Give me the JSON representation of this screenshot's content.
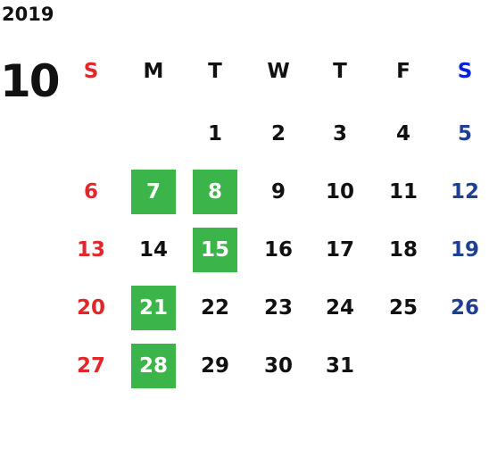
{
  "year": "2019",
  "month": "10",
  "weekdays": [
    "S",
    "M",
    "T",
    "W",
    "T",
    "F",
    "S"
  ],
  "weeks": [
    [
      null,
      null,
      1,
      2,
      3,
      4,
      5
    ],
    [
      6,
      7,
      8,
      9,
      10,
      11,
      12
    ],
    [
      13,
      14,
      15,
      16,
      17,
      18,
      19
    ],
    [
      20,
      21,
      22,
      23,
      24,
      25,
      26
    ],
    [
      27,
      28,
      29,
      30,
      31,
      null,
      null
    ]
  ],
  "highlighted": [
    7,
    8,
    15,
    21,
    28
  ],
  "colors": {
    "highlight": "#3bb54a",
    "sunday": "#e3262a",
    "saturday_header": "#0a1fe0",
    "saturday": "#1f3f92",
    "weekday": "#111111"
  }
}
